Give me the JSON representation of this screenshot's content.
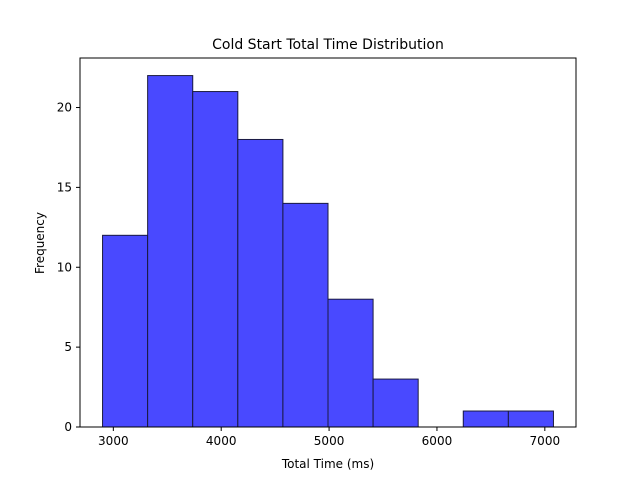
{
  "chart_data": {
    "type": "bar",
    "title": "Cold Start Total Time Distribution",
    "xlabel": "Total Time (ms)",
    "ylabel": "Frequency",
    "bin_edges": [
      2900,
      3318,
      3736,
      4154,
      4572,
      4990,
      5408,
      5826,
      6244,
      6662,
      7080
    ],
    "values": [
      12,
      22,
      21,
      18,
      14,
      8,
      3,
      0,
      1,
      1
    ],
    "xlim": [
      2691,
      7289
    ],
    "ylim": [
      0,
      23.1
    ],
    "xticks": [
      3000,
      4000,
      5000,
      6000,
      7000
    ],
    "yticks": [
      0,
      5,
      10,
      15,
      20
    ],
    "xtick_labels": [
      "3000",
      "4000",
      "5000",
      "6000",
      "7000"
    ],
    "ytick_labels": [
      "0",
      "5",
      "10",
      "15",
      "20"
    ],
    "bar_color": "#4949ff",
    "edge_color": "#1a1a40",
    "grid": false
  }
}
